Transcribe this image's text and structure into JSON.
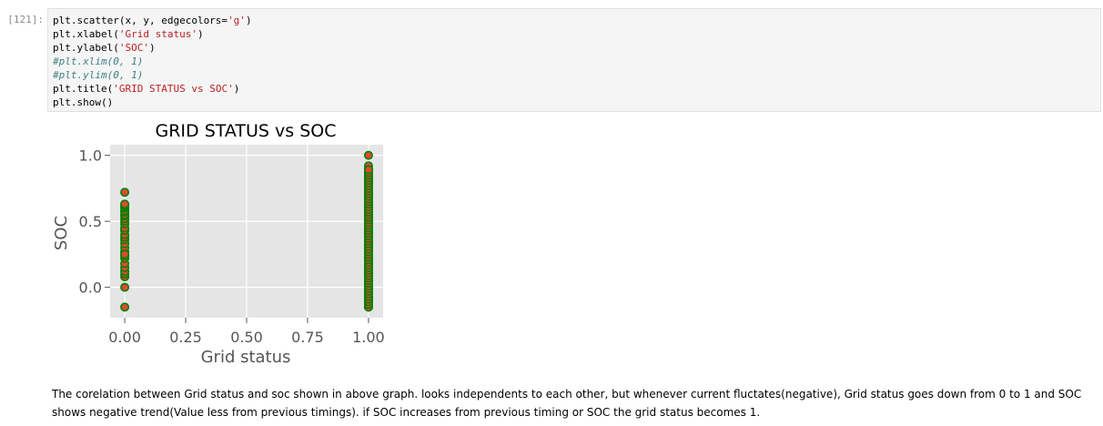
{
  "cell": {
    "prompt": "[121]:",
    "code_lines": [
      "plt.scatter(x, y, edgecolors='g')",
      "plt.xlabel('Grid status')",
      "plt.ylabel('SOC')",
      "#plt.xlim(0, 1)",
      "#plt.ylim(0, 1)",
      "plt.title('GRID STATUS vs SOC')",
      "plt.show()"
    ]
  },
  "chart_data": {
    "type": "scatter",
    "title": "GRID STATUS vs SOC",
    "xlabel": "Grid status",
    "ylabel": "SOC",
    "xlim": [
      -0.06,
      1.06
    ],
    "ylim": [
      -0.23,
      1.08
    ],
    "x_ticks": [
      0.0,
      0.25,
      0.5,
      0.75,
      1.0
    ],
    "x_tick_labels": [
      "0.00",
      "0.25",
      "0.50",
      "0.75",
      "1.00"
    ],
    "y_ticks": [
      0.0,
      0.5,
      1.0
    ],
    "y_tick_labels": [
      "0.0",
      "0.5",
      "1.0"
    ],
    "grid": true,
    "marker_face": "#e24a33",
    "marker_edge": "#008000",
    "background": "#e5e5e5",
    "x": [
      0,
      0,
      0,
      0,
      0,
      0,
      0,
      0,
      0,
      0,
      0,
      0,
      0,
      0,
      0,
      0,
      0,
      0,
      0,
      0,
      0,
      0,
      0,
      0,
      0,
      0,
      0,
      0,
      0,
      0,
      1,
      1,
      1,
      1,
      1,
      1,
      1,
      1,
      1,
      1,
      1,
      1,
      1,
      1,
      1,
      1,
      1,
      1,
      1,
      1,
      1,
      1,
      1,
      1,
      1,
      1,
      1,
      1,
      1,
      1,
      1,
      1,
      1,
      1,
      1,
      1,
      1,
      1,
      1,
      1,
      1,
      1,
      1,
      1,
      1,
      1,
      1,
      1,
      1,
      1
    ],
    "y": [
      -0.15,
      0.0,
      0.08,
      0.1,
      0.12,
      0.15,
      0.18,
      0.22,
      0.24,
      0.27,
      0.3,
      0.33,
      0.36,
      0.38,
      0.4,
      0.43,
      0.45,
      0.48,
      0.5,
      0.52,
      0.54,
      0.55,
      0.57,
      0.58,
      0.6,
      0.61,
      0.62,
      0.63,
      0.72,
      0.25,
      -0.15,
      -0.1,
      -0.05,
      0.0,
      0.05,
      0.1,
      0.15,
      0.2,
      0.25,
      0.3,
      0.35,
      0.4,
      0.45,
      0.5,
      0.55,
      0.6,
      0.65,
      0.7,
      0.75,
      0.8,
      0.85,
      0.9,
      0.92,
      1.0,
      -0.12,
      -0.08,
      -0.02,
      0.02,
      0.08,
      0.12,
      0.18,
      0.22,
      0.28,
      0.32,
      0.38,
      0.42,
      0.48,
      0.52,
      0.58,
      0.62,
      0.68,
      0.72,
      0.78,
      0.82,
      0.88,
      0.86,
      0.7,
      0.5,
      0.3,
      0.1
    ]
  },
  "markdown": {
    "text": "The corelation between Grid status and soc shown in above graph. looks independents to each other, but whenever current fluctates(negative), Grid status goes down from 0 to 1 and SOC shows negative trend(Value less from previous timings). if SOC increases from previous timing or SOC the grid status becomes 1."
  }
}
